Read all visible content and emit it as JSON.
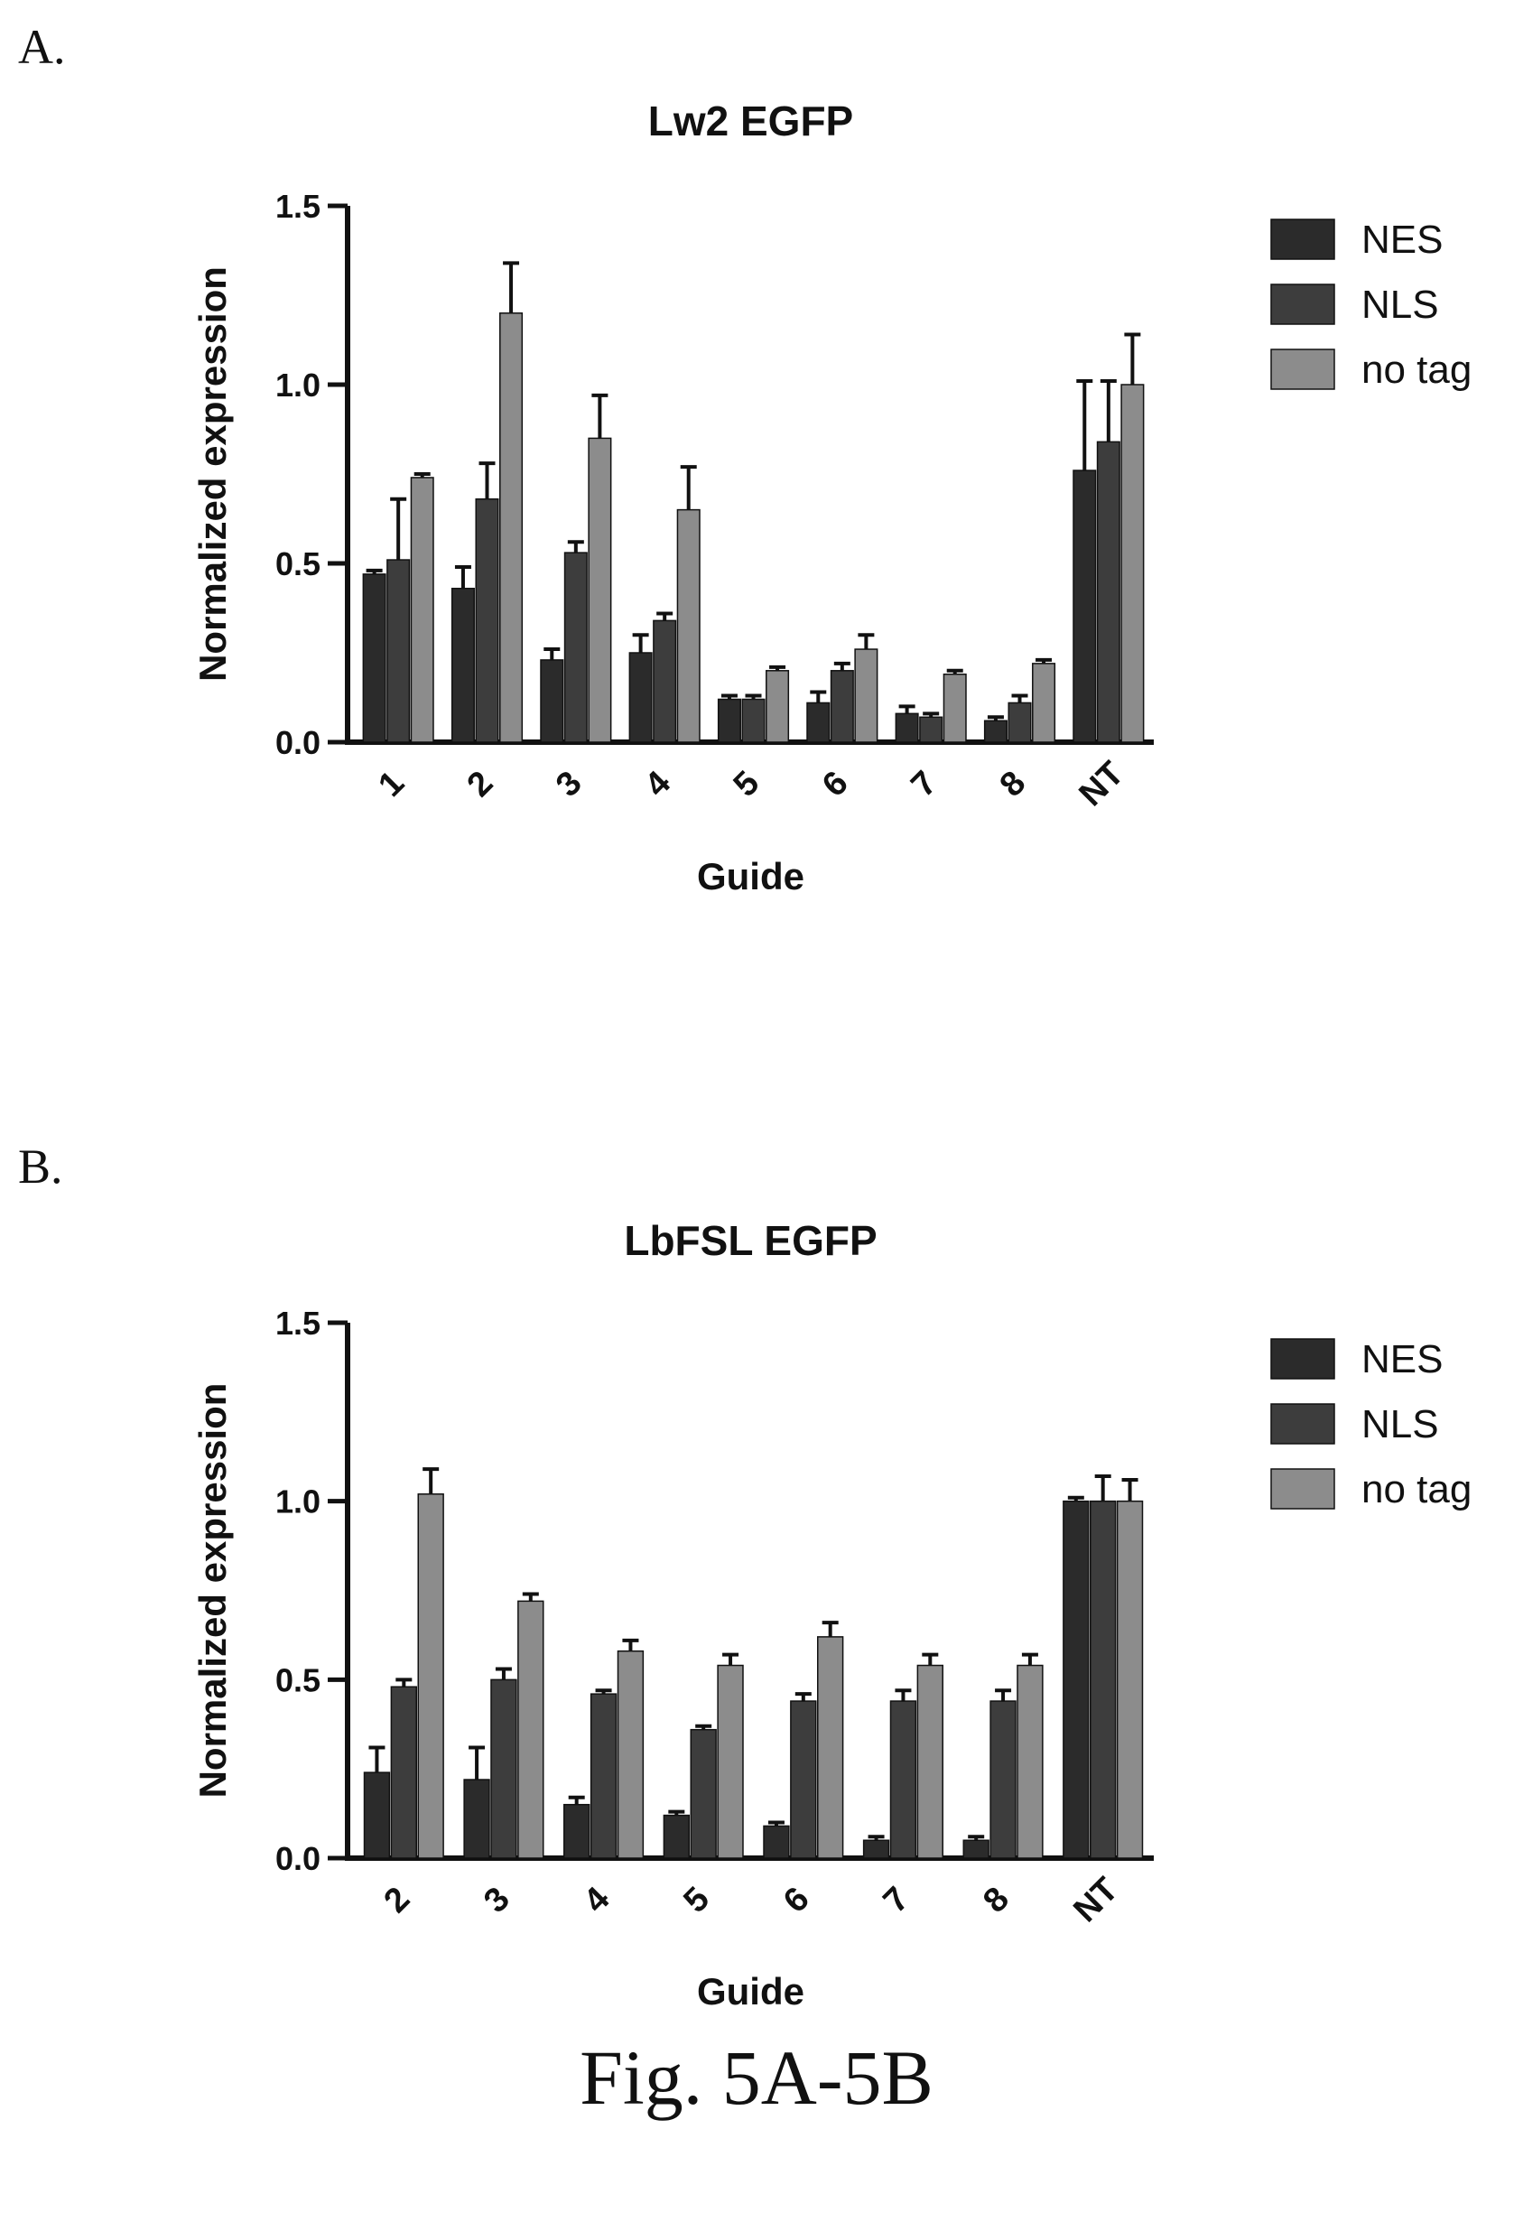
{
  "caption": "Fig. 5A-5B",
  "colors": {
    "NES": "#2b2b2b",
    "NLS": "#3d3d3d",
    "no tag": "#8c8c8c",
    "axis": "#111111"
  },
  "chart_data": [
    {
      "panel": "A.",
      "type": "bar",
      "title": "Lw2 EGFP",
      "xlabel": "Guide",
      "ylabel": "Normalized expression",
      "ylim": [
        0,
        1.5
      ],
      "yticks": [
        0.0,
        0.5,
        1.0,
        1.5
      ],
      "ytick_labels": [
        "0.0",
        "0.5",
        "1.0",
        "1.5"
      ],
      "categories": [
        "1",
        "2",
        "3",
        "4",
        "5",
        "6",
        "7",
        "8",
        "NT"
      ],
      "legend_position": "right",
      "series": [
        {
          "name": "NES",
          "values": [
            0.47,
            0.43,
            0.23,
            0.25,
            0.12,
            0.11,
            0.08,
            0.06,
            0.76
          ],
          "errors": [
            0.01,
            0.06,
            0.03,
            0.05,
            0.01,
            0.03,
            0.02,
            0.01,
            0.25
          ]
        },
        {
          "name": "NLS",
          "values": [
            0.51,
            0.68,
            0.53,
            0.34,
            0.12,
            0.2,
            0.07,
            0.11,
            0.84
          ],
          "errors": [
            0.17,
            0.1,
            0.03,
            0.02,
            0.01,
            0.02,
            0.01,
            0.02,
            0.17
          ]
        },
        {
          "name": "no tag",
          "values": [
            0.74,
            1.2,
            0.85,
            0.65,
            0.2,
            0.26,
            0.19,
            0.22,
            1.0
          ],
          "errors": [
            0.01,
            0.14,
            0.12,
            0.12,
            0.01,
            0.04,
            0.01,
            0.01,
            0.14
          ]
        }
      ]
    },
    {
      "panel": "B.",
      "type": "bar",
      "title": "LbFSL EGFP",
      "xlabel": "Guide",
      "ylabel": "Normalized expression",
      "ylim": [
        0,
        1.5
      ],
      "yticks": [
        0.0,
        0.5,
        1.0,
        1.5
      ],
      "ytick_labels": [
        "0.0",
        "0.5",
        "1.0",
        "1.5"
      ],
      "categories": [
        "2",
        "3",
        "4",
        "5",
        "6",
        "7",
        "8",
        "NT"
      ],
      "legend_position": "right",
      "series": [
        {
          "name": "NES",
          "values": [
            0.24,
            0.22,
            0.15,
            0.12,
            0.09,
            0.05,
            0.05,
            1.0
          ],
          "errors": [
            0.07,
            0.09,
            0.02,
            0.01,
            0.01,
            0.01,
            0.01,
            0.01
          ]
        },
        {
          "name": "NLS",
          "values": [
            0.48,
            0.5,
            0.46,
            0.36,
            0.44,
            0.44,
            0.44,
            1.0
          ],
          "errors": [
            0.02,
            0.03,
            0.01,
            0.01,
            0.02,
            0.03,
            0.03,
            0.07
          ]
        },
        {
          "name": "no tag",
          "values": [
            1.02,
            0.72,
            0.58,
            0.54,
            0.62,
            0.54,
            0.54,
            1.0
          ],
          "errors": [
            0.07,
            0.02,
            0.03,
            0.03,
            0.04,
            0.03,
            0.03,
            0.06
          ]
        }
      ]
    }
  ]
}
